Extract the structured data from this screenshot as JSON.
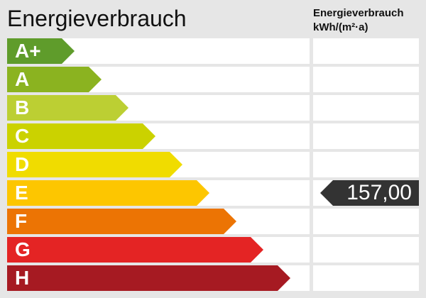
{
  "title": "Energieverbrauch",
  "unit_header": {
    "line1": "Energieverbrauch",
    "line2": "kWh/(m²·a)"
  },
  "classes": [
    {
      "label": "A+",
      "color": "#5f9c2b"
    },
    {
      "label": "A",
      "color": "#8bb320"
    },
    {
      "label": "B",
      "color": "#bccf33"
    },
    {
      "label": "C",
      "color": "#cbd200"
    },
    {
      "label": "D",
      "color": "#f0dc00"
    },
    {
      "label": "E",
      "color": "#fdc600"
    },
    {
      "label": "F",
      "color": "#ec7404"
    },
    {
      "label": "G",
      "color": "#e42424"
    },
    {
      "label": "H",
      "color": "#a61a22"
    }
  ],
  "value": {
    "text": "157,00",
    "class": "E",
    "color": "#333333"
  }
}
